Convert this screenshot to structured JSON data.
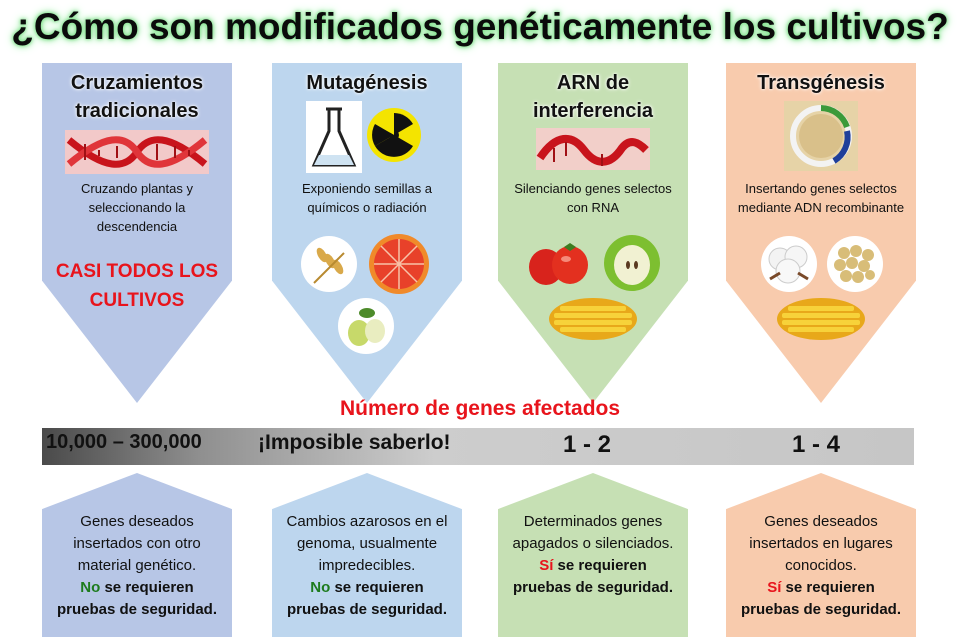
{
  "title": "¿Cómo son modificados genéticamente los cultivos?",
  "columns": [
    {
      "title_l1": "Cruzamientos",
      "title_l2": "tradicionales",
      "desc": "Cruzando plantas y seleccionando la descendencia",
      "highlight_l1": "CASI TODOS LOS",
      "highlight_l2": "CULTIVOS",
      "color": "#b7c6e6"
    },
    {
      "title_l1": "Mutagénesis",
      "title_l2": "",
      "desc": "Exponiendo semillas a químicos o radiación",
      "color": "#bdd6ee"
    },
    {
      "title_l1": "ARN de",
      "title_l2": "interferencia",
      "desc": "Silenciando genes selectos con RNA",
      "color": "#c6e0b4"
    },
    {
      "title_l1": "Transgénesis",
      "title_l2": "",
      "desc": "Insertando genes selectos mediante ADN recombinante",
      "color": "#f8cbad"
    }
  ],
  "icons": [
    "dna-helix-icon",
    "flask-icon",
    "radiation-icon",
    "wheat-icon",
    "grapefruit-icon",
    "pear-icon",
    "rna-strand-icon",
    "tomato-icon",
    "apple-icon",
    "corn-icon",
    "plasmid-icon",
    "cotton-icon",
    "soybean-icon",
    "corn-icon"
  ],
  "scale": {
    "title": "Número de genes afectados",
    "values": [
      "10,000 – 300,000",
      "¡Imposible saberlo!",
      "1 - 2",
      "1 - 4"
    ]
  },
  "bottom": [
    {
      "text": "Genes deseados insertados con otro material genético.",
      "lead": "No",
      "rest": " se requieren",
      "line2": "pruebas de seguridad."
    },
    {
      "text": "Cambios azarosos en el genoma, usualmente impredecibles.",
      "lead": "No",
      "rest": " se requieren",
      "line2": "pruebas de seguridad."
    },
    {
      "text": "Determinados genes apagados o silenciados.",
      "lead": "Sí",
      "rest": " se requieren",
      "line2": "pruebas de seguridad."
    },
    {
      "text": "Genes deseados insertados en lugares conocidos.",
      "lead": "Sí",
      "rest": " se requieren",
      "line2": "pruebas de seguridad."
    }
  ]
}
